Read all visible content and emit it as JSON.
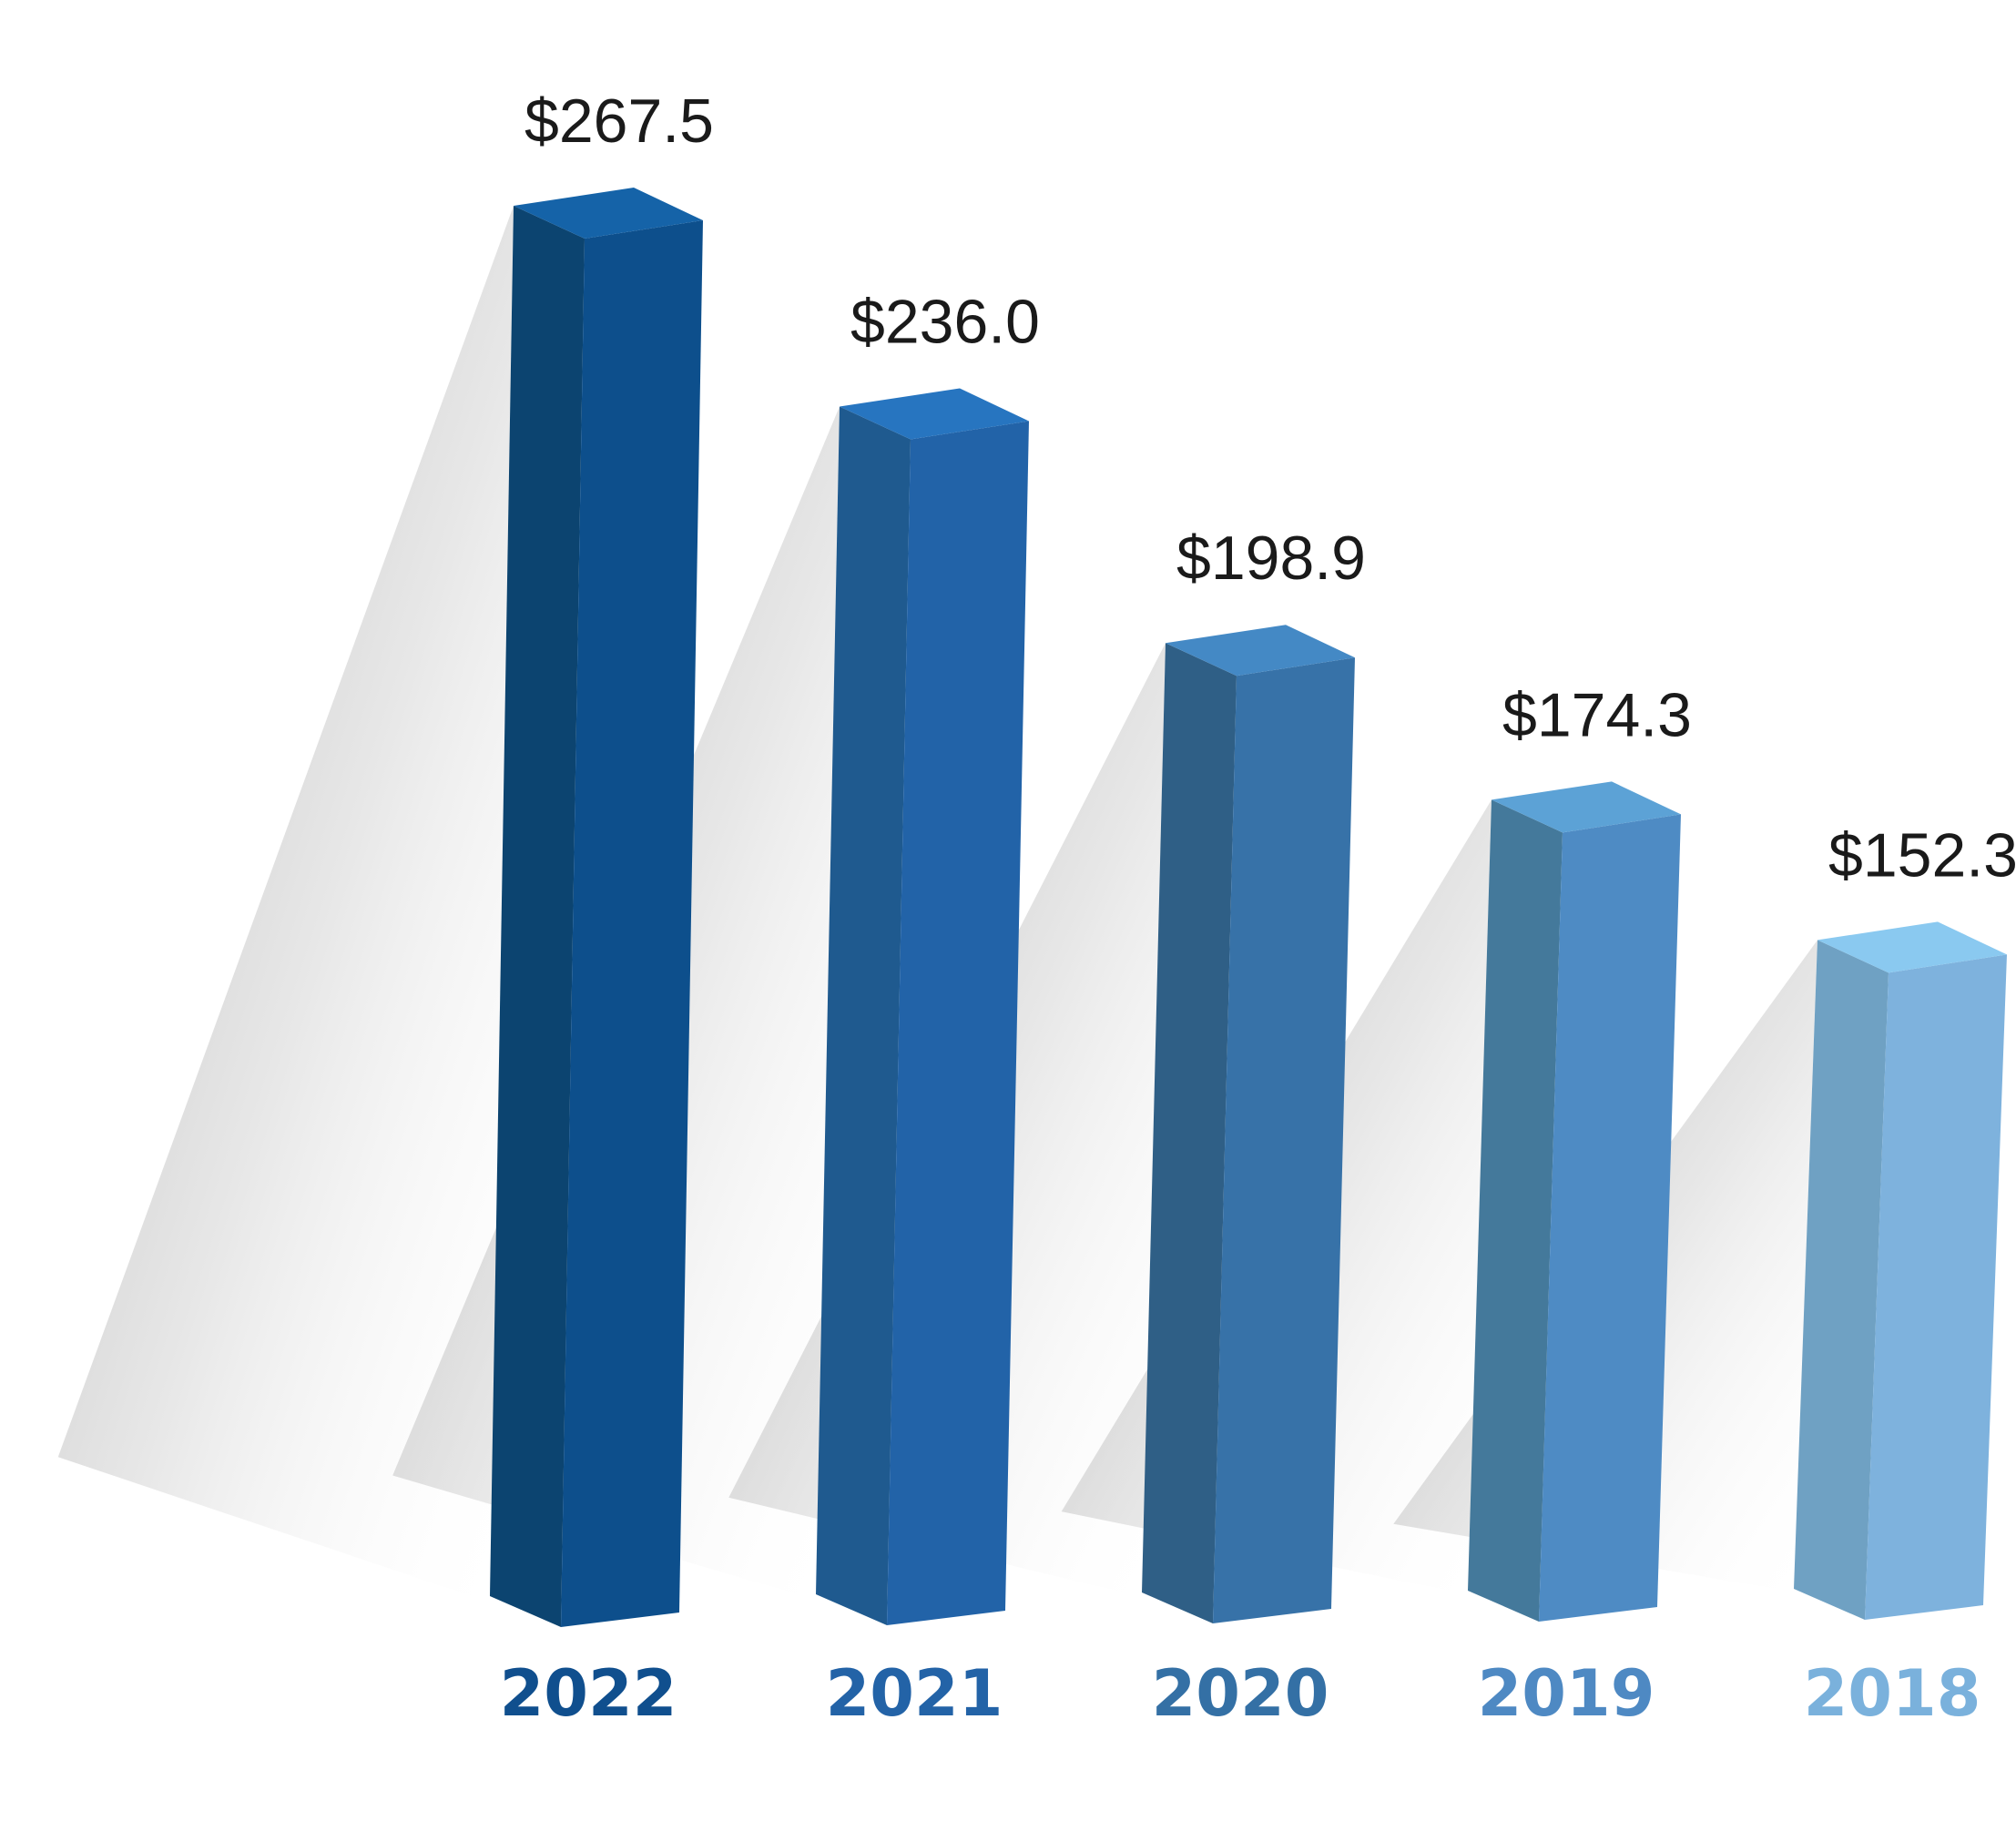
{
  "chart_data": {
    "type": "bar",
    "categories": [
      "2022",
      "2021",
      "2020",
      "2019",
      "2018"
    ],
    "values": [
      267.5,
      236.0,
      198.9,
      174.3,
      152.3
    ],
    "value_labels": [
      "$267.5",
      "$236.0",
      "$198.9",
      "$174.3",
      "$152.3"
    ],
    "title": "",
    "xlabel": "",
    "ylabel": "",
    "grid": false,
    "legend": "none",
    "colors": {
      "front": [
        "#0d4f8c",
        "#2263a8",
        "#3772a8",
        "#4e8bc4",
        "#7eb2dd"
      ],
      "side": [
        "#0c4470",
        "#1f5a8f",
        "#2f5f86",
        "#44799b",
        "#6fa1c3"
      ],
      "top": [
        "#1563a8",
        "#2775c0",
        "#4489c5",
        "#5ca2d6",
        "#8ac9f0"
      ],
      "year_label": [
        "#104f8e",
        "#2363a7",
        "#3470a5",
        "#4e89c3",
        "#7ab1dc"
      ]
    }
  }
}
